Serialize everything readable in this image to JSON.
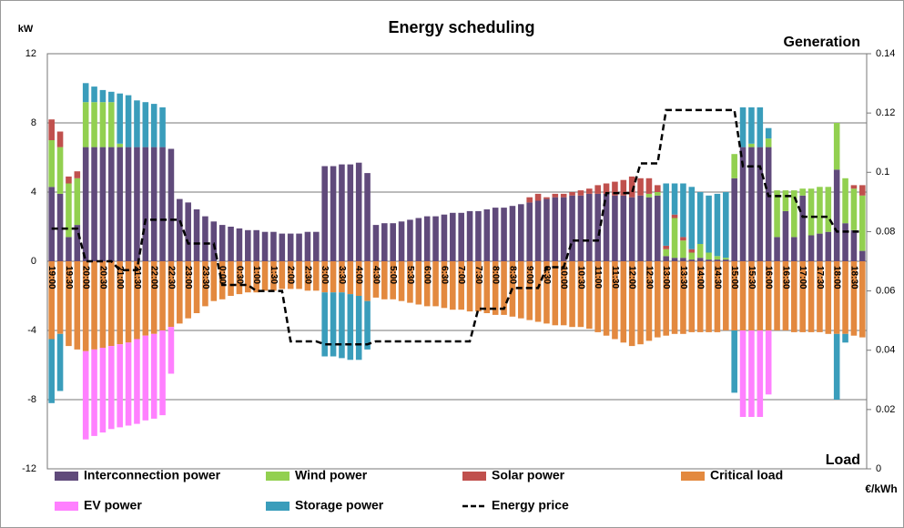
{
  "chart_data": {
    "type": "bar",
    "title": "Energy scheduling",
    "y_label": "kW",
    "y2_label": "€/kWh",
    "annotations": [
      "Generation",
      "Load"
    ],
    "categories": [
      "19:00",
      null,
      "19:30",
      null,
      "20:00",
      null,
      "20:30",
      null,
      "21:00",
      null,
      "21:30",
      null,
      "22:00",
      null,
      "22:30",
      null,
      "23:00",
      null,
      "23:30",
      null,
      "0:00",
      null,
      "0:30",
      null,
      "1:00",
      null,
      "1:30",
      null,
      "2:00",
      null,
      "2:30",
      null,
      "3:00",
      null,
      "3:30",
      null,
      "4:00",
      null,
      "4:30",
      null,
      "5:00",
      null,
      "5:30",
      null,
      "6:00",
      null,
      "6:30",
      null,
      "7:00",
      null,
      "7:30",
      null,
      "8:00",
      null,
      "8:30",
      null,
      "9:00",
      null,
      "9:30",
      null,
      "10:00",
      null,
      "10:30",
      null,
      "11:00",
      null,
      "11:30",
      null,
      "12:00",
      null,
      "12:30",
      null,
      "13:00",
      null,
      "13:30",
      null,
      "14:00",
      null,
      "14:30",
      null,
      "15:00",
      null,
      "15:30",
      null,
      "16:00",
      null,
      "16:30",
      null,
      "17:00",
      null,
      "17:30",
      null,
      "18:00",
      null,
      "18:30",
      null
    ],
    "series": [
      {
        "name": "Interconnection power",
        "color": "#604a7b",
        "values": [
          4.3,
          3.9,
          1.4,
          2.1,
          6.6,
          6.6,
          6.6,
          6.6,
          6.6,
          6.6,
          6.6,
          6.6,
          6.6,
          6.6,
          6.5,
          3.6,
          3.4,
          3.0,
          2.6,
          2.3,
          2.1,
          2.0,
          1.9,
          1.8,
          1.8,
          1.7,
          1.7,
          1.6,
          1.6,
          1.6,
          1.7,
          1.7,
          5.5,
          5.5,
          5.6,
          5.6,
          5.7,
          5.1,
          2.1,
          2.2,
          2.2,
          2.3,
          2.4,
          2.5,
          2.6,
          2.6,
          2.7,
          2.8,
          2.8,
          2.9,
          2.9,
          3.0,
          3.1,
          3.1,
          3.2,
          3.3,
          3.4,
          3.5,
          3.6,
          3.7,
          3.7,
          3.8,
          3.8,
          3.9,
          3.9,
          3.9,
          3.8,
          3.8,
          3.7,
          3.8,
          3.7,
          3.8,
          0.3,
          0.2,
          0.2,
          0.1,
          0.2,
          0.1,
          0.1,
          0.1,
          4.8,
          6.6,
          6.6,
          6.6,
          6.6,
          1.4,
          2.9,
          1.4,
          3.8,
          1.5,
          1.6,
          1.7,
          5.3,
          2.2,
          1.8,
          0.6
        ]
      },
      {
        "name": "Wind power",
        "color": "#92d050",
        "values": [
          2.7,
          2.7,
          3.1,
          2.7,
          2.6,
          2.6,
          2.6,
          2.6,
          0.2,
          0,
          0,
          0,
          0,
          0,
          0,
          0,
          0,
          0,
          0,
          0,
          0,
          0,
          0,
          0,
          0,
          0,
          0,
          0,
          0,
          0,
          0,
          0,
          0,
          0,
          0,
          0,
          0,
          0,
          0,
          0,
          0,
          0,
          0,
          0,
          0,
          0,
          0,
          0,
          0,
          0,
          0,
          0,
          0,
          0,
          0,
          0,
          0,
          0,
          0,
          0,
          0,
          0,
          0,
          0,
          0,
          0,
          0,
          0,
          0,
          0,
          0.2,
          0.2,
          0.4,
          2.3,
          1.0,
          0.4,
          0.8,
          0.4,
          0.2,
          0.1,
          1.4,
          0,
          0.2,
          0,
          0.5,
          2.7,
          1.2,
          2.7,
          0.4,
          2.7,
          2.7,
          2.6,
          2.7,
          2.6,
          2.4,
          3.2
        ]
      },
      {
        "name": "Solar power",
        "color": "#c0504d",
        "values": [
          1.2,
          0.9,
          0.4,
          0.4,
          0,
          0,
          0,
          0,
          0,
          0,
          0,
          0,
          0,
          0,
          0,
          0,
          0,
          0,
          0,
          0,
          0,
          0,
          0,
          0,
          0,
          0,
          0,
          0,
          0,
          0,
          0,
          0,
          0,
          0,
          0,
          0,
          0,
          0,
          0,
          0,
          0,
          0,
          0,
          0,
          0,
          0,
          0,
          0,
          0,
          0,
          0,
          0,
          0,
          0,
          0,
          0,
          0.3,
          0.4,
          0.1,
          0.2,
          0.2,
          0.2,
          0.3,
          0.3,
          0.5,
          0.6,
          0.8,
          0.9,
          1.2,
          1.0,
          0.9,
          0.4,
          0.2,
          0.2,
          0.2,
          0.2,
          0,
          0,
          0,
          0,
          0,
          0,
          0,
          0,
          0,
          0,
          0,
          0,
          0,
          0,
          0,
          0,
          0,
          0,
          0.2,
          0.6
        ]
      },
      {
        "name": "Critical load",
        "color": "#e3893f",
        "values": [
          -4.5,
          -4.2,
          -4.9,
          -5.1,
          -5.2,
          -5.1,
          -5.0,
          -4.9,
          -4.8,
          -4.7,
          -4.5,
          -4.3,
          -4.2,
          -4.0,
          -3.8,
          -3.6,
          -3.3,
          -3.0,
          -2.6,
          -2.3,
          -2.2,
          -2.0,
          -1.9,
          -1.8,
          -1.8,
          -1.7,
          -1.7,
          -1.6,
          -1.6,
          -1.6,
          -1.7,
          -1.7,
          -1.8,
          -1.8,
          -1.8,
          -1.9,
          -2.0,
          -2.3,
          -2.1,
          -2.2,
          -2.2,
          -2.3,
          -2.4,
          -2.5,
          -2.6,
          -2.6,
          -2.7,
          -2.8,
          -2.8,
          -2.9,
          -2.9,
          -3.0,
          -3.1,
          -3.1,
          -3.2,
          -3.3,
          -3.4,
          -3.5,
          -3.6,
          -3.7,
          -3.7,
          -3.8,
          -3.8,
          -3.9,
          -4.1,
          -4.3,
          -4.5,
          -4.7,
          -4.9,
          -4.8,
          -4.6,
          -4.4,
          -4.3,
          -4.2,
          -4.2,
          -4.1,
          -4.1,
          -4.1,
          -4.1,
          -4.0,
          -4.0,
          -4.0,
          -4.0,
          -4.0,
          -4.0,
          -4.0,
          -4.0,
          -4.1,
          -4.1,
          -4.1,
          -4.1,
          -4.2,
          -4.2,
          -4.2,
          -4.3,
          -4.4
        ]
      },
      {
        "name": "EV power",
        "color": "#ff80ff",
        "values": [
          0,
          0,
          0,
          0,
          -5.1,
          -5.0,
          -4.9,
          -4.8,
          -4.8,
          -4.8,
          -4.9,
          -4.9,
          -4.9,
          -4.9,
          -2.7,
          0,
          0,
          0,
          0,
          0,
          0,
          0,
          0,
          0,
          0,
          0,
          0,
          0,
          0,
          0,
          0,
          0,
          0,
          0,
          0,
          0,
          0,
          0,
          0,
          0,
          0,
          0,
          0,
          0,
          0,
          0,
          0,
          0,
          0,
          0,
          0,
          0,
          0,
          0,
          0,
          0,
          0,
          0,
          0,
          0,
          0,
          0,
          0,
          0,
          0,
          0,
          0,
          0,
          0,
          0,
          0,
          0,
          0,
          0,
          0,
          0,
          0,
          0,
          0,
          0,
          0,
          -5,
          -5,
          -5,
          -3.7,
          0,
          0,
          0,
          0,
          0,
          0,
          0,
          0,
          0,
          0,
          0
        ]
      },
      {
        "name": "Storage power",
        "color": "#3a9dbb",
        "values": [
          -3.7,
          -3.3,
          0,
          0,
          1.1,
          0.9,
          0.7,
          0.6,
          2.9,
          3.0,
          2.7,
          2.6,
          2.5,
          2.3,
          0,
          0,
          0,
          0,
          0,
          0,
          0,
          0,
          0,
          0,
          0,
          0,
          0,
          0,
          0,
          0,
          0,
          0,
          -3.7,
          -3.7,
          -3.8,
          -3.8,
          -3.7,
          -2.8,
          0,
          0,
          0,
          0,
          0,
          0,
          0,
          0,
          0,
          0,
          0,
          0,
          0,
          0,
          0,
          0,
          0,
          0,
          0,
          0,
          0,
          0,
          0,
          0,
          0,
          0,
          0,
          0,
          0,
          0,
          0,
          0,
          0,
          0,
          3.6,
          1.8,
          3.1,
          3.6,
          3.0,
          3.3,
          3.6,
          3.8,
          -3.6,
          2.3,
          2.1,
          2.3,
          0.6,
          0,
          0,
          0,
          0,
          0,
          0,
          0,
          -3.8,
          -0.5,
          0,
          0
        ]
      },
      {
        "name": "Energy price",
        "color": "#000000",
        "axis": "y2",
        "type": "line",
        "values": [
          0.081,
          0.081,
          0.081,
          0.081,
          0.07,
          0.07,
          0.07,
          0.07,
          0.067,
          0.067,
          0.067,
          0.084,
          0.084,
          0.084,
          0.084,
          0.084,
          0.076,
          0.076,
          0.076,
          0.076,
          0.062,
          0.062,
          0.062,
          0.062,
          0.06,
          0.06,
          0.06,
          0.06,
          0.043,
          0.043,
          0.043,
          0.043,
          0.042,
          0.042,
          0.042,
          0.042,
          0.042,
          0.042,
          0.043,
          0.043,
          0.043,
          0.043,
          0.043,
          0.043,
          0.043,
          0.043,
          0.043,
          0.043,
          0.043,
          0.043,
          0.054,
          0.054,
          0.054,
          0.054,
          0.061,
          0.061,
          0.061,
          0.061,
          0.068,
          0.068,
          0.068,
          0.077,
          0.077,
          0.077,
          0.077,
          0.093,
          0.093,
          0.093,
          0.093,
          0.103,
          0.103,
          0.103,
          0.121,
          0.121,
          0.121,
          0.121,
          0.121,
          0.121,
          0.121,
          0.121,
          0.121,
          0.102,
          0.102,
          0.102,
          0.092,
          0.092,
          0.092,
          0.092,
          0.085,
          0.085,
          0.085,
          0.085,
          0.08,
          0.08,
          0.08,
          0.08
        ]
      }
    ],
    "ylim": [
      -12,
      12
    ],
    "yticks": [
      -12,
      -8,
      -4,
      0,
      4,
      8,
      12
    ],
    "y2lim": [
      0,
      0.14
    ],
    "y2ticks": [
      0,
      0.02,
      0.04,
      0.06,
      0.08,
      0.1,
      0.12,
      0.14
    ],
    "grid": true
  }
}
